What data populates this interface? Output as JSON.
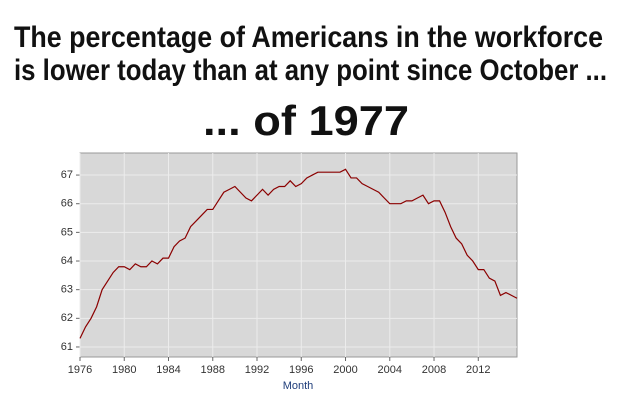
{
  "chart_data": {
    "type": "line",
    "title_lines": [
      "The percentage of Americans in the workforce",
      "is lower today than at any point since October ...",
      "... of 1977"
    ],
    "x_label": "Month",
    "xlim": [
      1976,
      2015.5
    ],
    "xticks": [
      1976,
      1980,
      1984,
      1988,
      1992,
      1996,
      2000,
      2004,
      2008,
      2012
    ],
    "ylim": [
      60.65,
      67.77
    ],
    "yticks": [
      61,
      62,
      63,
      64,
      65,
      66,
      67
    ],
    "grid": true,
    "series": [
      {
        "color": "#8b0000",
        "x": [
          1976,
          1976.5,
          1977,
          1977.5,
          1978,
          1978.5,
          1979,
          1979.5,
          1980,
          1980.5,
          1981,
          1981.5,
          1982,
          1982.5,
          1983,
          1983.5,
          1984,
          1984.5,
          1985,
          1985.5,
          1986,
          1986.5,
          1987,
          1987.5,
          1988,
          1988.5,
          1989,
          1989.5,
          1990,
          1990.5,
          1991,
          1991.5,
          1992,
          1992.5,
          1993,
          1993.5,
          1994,
          1994.5,
          1995,
          1995.5,
          1996,
          1996.5,
          1997,
          1997.5,
          1998,
          1998.5,
          1999,
          1999.5,
          2000,
          2000.5,
          2001,
          2001.5,
          2002,
          2002.5,
          2003,
          2003.5,
          2004,
          2004.5,
          2005,
          2005.5,
          2006,
          2006.5,
          2007,
          2007.5,
          2008,
          2008.5,
          2009,
          2009.5,
          2010,
          2010.5,
          2011,
          2011.5,
          2012,
          2012.5,
          2013,
          2013.5,
          2014,
          2014.5,
          2015,
          2015.5
        ],
        "values": [
          61.3,
          61.7,
          62.0,
          62.4,
          63.0,
          63.3,
          63.6,
          63.8,
          63.8,
          63.7,
          63.9,
          63.8,
          63.8,
          64.0,
          63.9,
          64.1,
          64.1,
          64.5,
          64.7,
          64.8,
          65.2,
          65.4,
          65.6,
          65.8,
          65.8,
          66.1,
          66.4,
          66.5,
          66.6,
          66.4,
          66.2,
          66.1,
          66.3,
          66.5,
          66.3,
          66.5,
          66.6,
          66.6,
          66.8,
          66.6,
          66.7,
          66.9,
          67.0,
          67.1,
          67.1,
          67.1,
          67.1,
          67.1,
          67.2,
          66.9,
          66.9,
          66.7,
          66.6,
          66.5,
          66.4,
          66.2,
          66.0,
          66.0,
          66.0,
          66.1,
          66.1,
          66.2,
          66.3,
          66.0,
          66.1,
          66.1,
          65.7,
          65.2,
          64.8,
          64.6,
          64.2,
          64.0,
          63.7,
          63.7,
          63.4,
          63.3,
          62.8,
          62.9,
          62.8,
          62.7
        ]
      }
    ]
  }
}
